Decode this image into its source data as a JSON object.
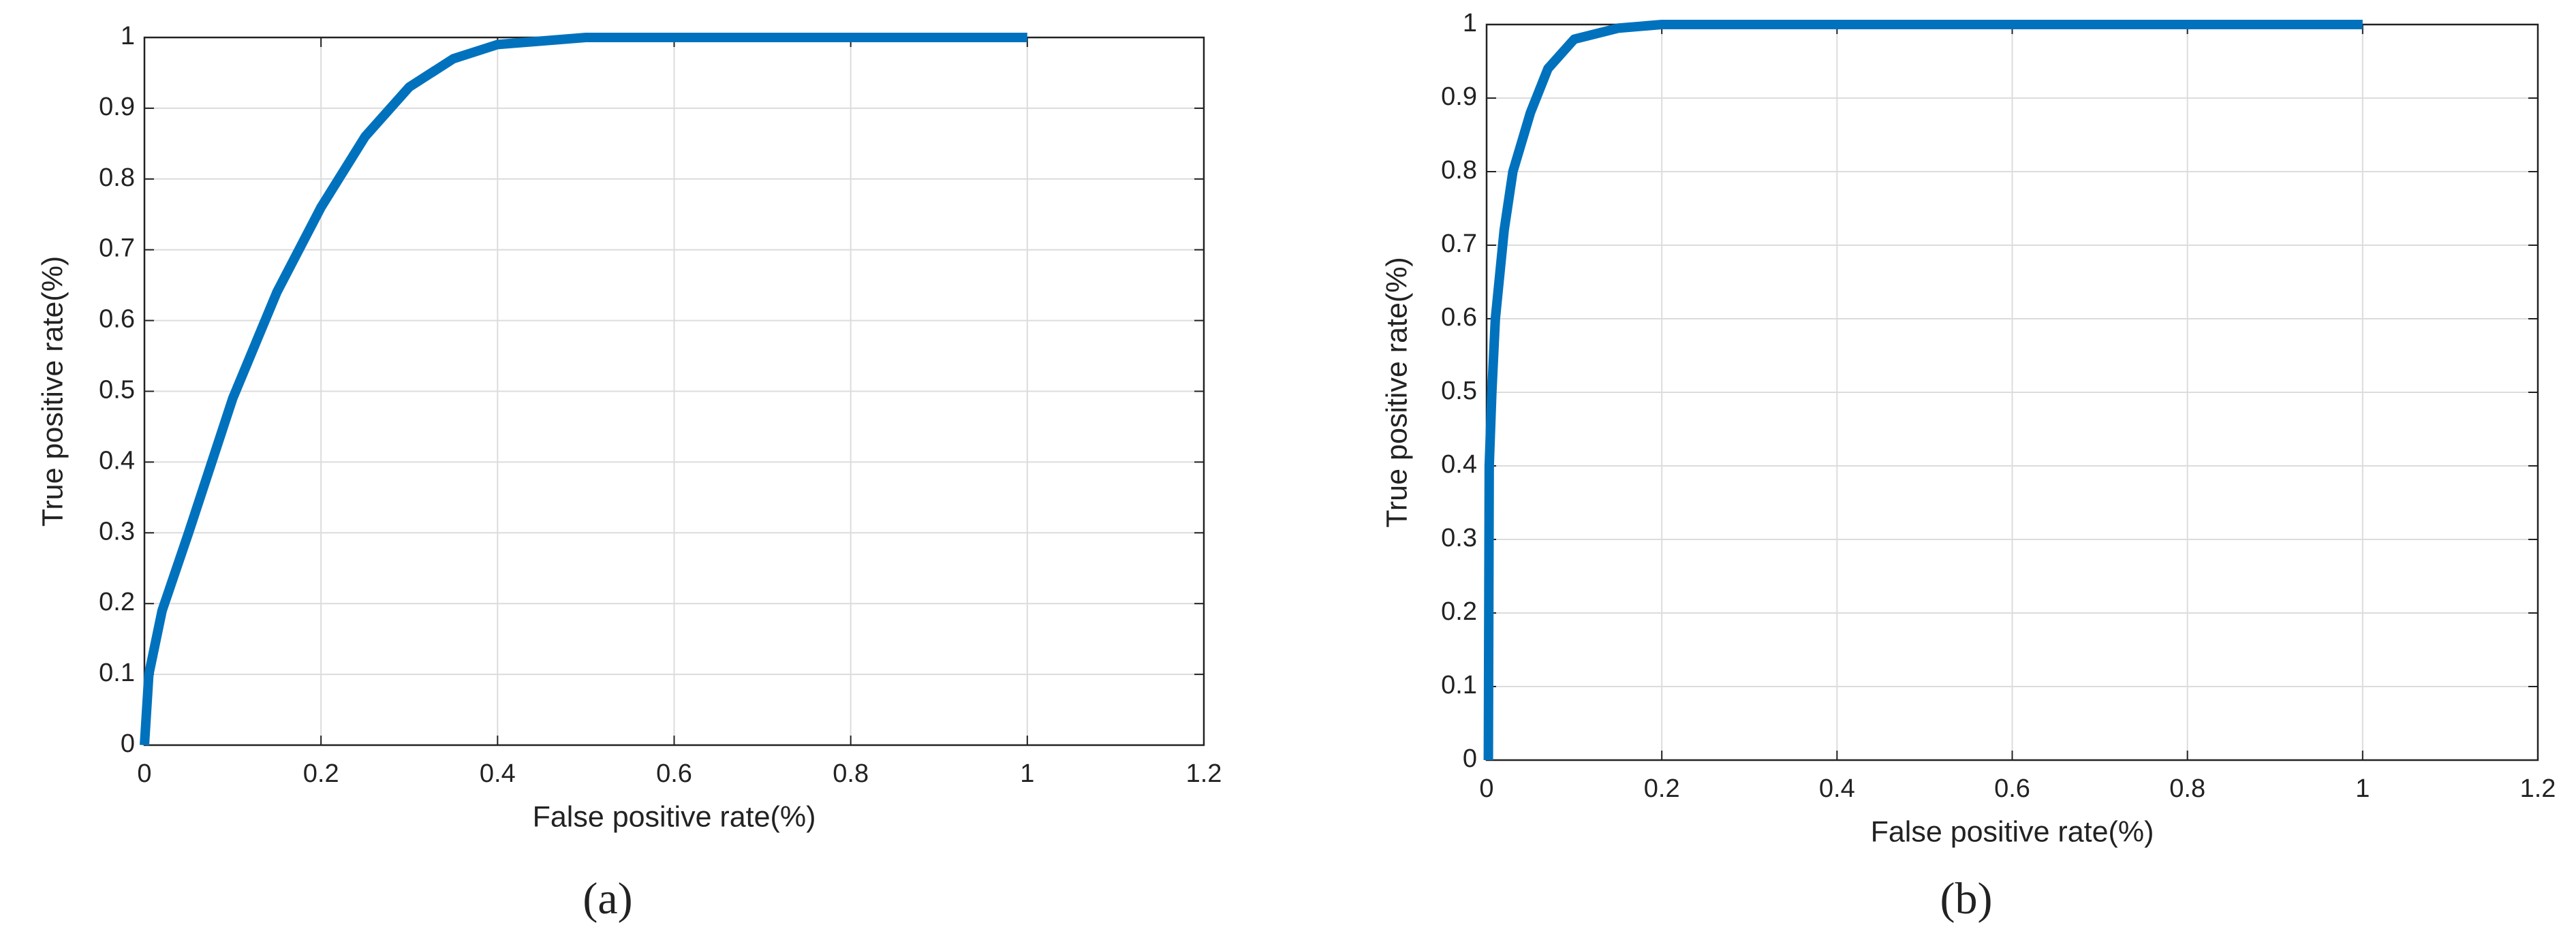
{
  "chart_data": [
    {
      "type": "line",
      "panel_label": "(a)",
      "x_label": "False positive rate(%)",
      "y_label": "True positive rate(%)",
      "x": [
        0,
        0.005,
        0.02,
        0.05,
        0.1,
        0.15,
        0.2,
        0.25,
        0.3,
        0.35,
        0.4,
        0.5,
        0.6,
        0.8,
        1
      ],
      "series": [
        {
          "color": "#0072bd",
          "values": [
            0,
            0.1,
            0.19,
            0.3,
            0.49,
            0.64,
            0.76,
            0.86,
            0.93,
            0.97,
            0.99,
            1,
            1,
            1,
            1
          ]
        }
      ],
      "xlim": [
        0,
        1.2
      ],
      "xticks": [
        0,
        0.2,
        0.4,
        0.6,
        0.8,
        1,
        1.2
      ],
      "ylim": [
        0,
        1
      ],
      "yticks": [
        0,
        0.1,
        0.2,
        0.3,
        0.4,
        0.5,
        0.6,
        0.7,
        0.8,
        0.9,
        1
      ],
      "grid": true
    },
    {
      "type": "line",
      "panel_label": "(b)",
      "x_label": "False positive rate(%)",
      "y_label": "True positive rate(%)",
      "x": [
        0.002,
        0.003,
        0.006,
        0.01,
        0.02,
        0.03,
        0.05,
        0.07,
        0.1,
        0.15,
        0.2,
        0.5,
        1
      ],
      "series": [
        {
          "color": "#0072bd",
          "values": [
            0,
            0.4,
            0.5,
            0.6,
            0.72,
            0.8,
            0.88,
            0.94,
            0.98,
            0.995,
            1,
            1,
            1
          ]
        }
      ],
      "xlim": [
        0,
        1.2
      ],
      "xticks": [
        0,
        0.2,
        0.4,
        0.6,
        0.8,
        1,
        1.2
      ],
      "ylim": [
        0,
        1
      ],
      "yticks": [
        0,
        0.1,
        0.2,
        0.3,
        0.4,
        0.5,
        0.6,
        0.7,
        0.8,
        0.9,
        1
      ],
      "grid": true
    }
  ]
}
